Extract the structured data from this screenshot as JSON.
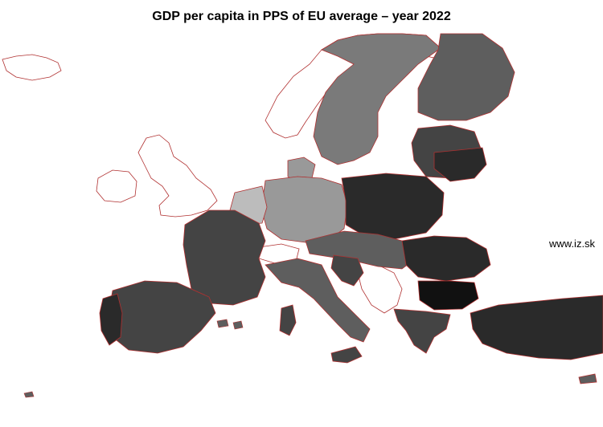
{
  "title": "GDP per capita in PPS of EU average – year 2022",
  "watermark": "www.iz.sk",
  "colors": {
    "background": "#ffffff",
    "border": "#b03030",
    "very_low": "#111111",
    "low": "#2a2a2a",
    "below_avg": "#444444",
    "average": "#5e5e5e",
    "above_avg": "#7a7a7a",
    "high": "#999999",
    "very_high": "#bcbcbc",
    "outline_land": "#ffffff"
  }
}
